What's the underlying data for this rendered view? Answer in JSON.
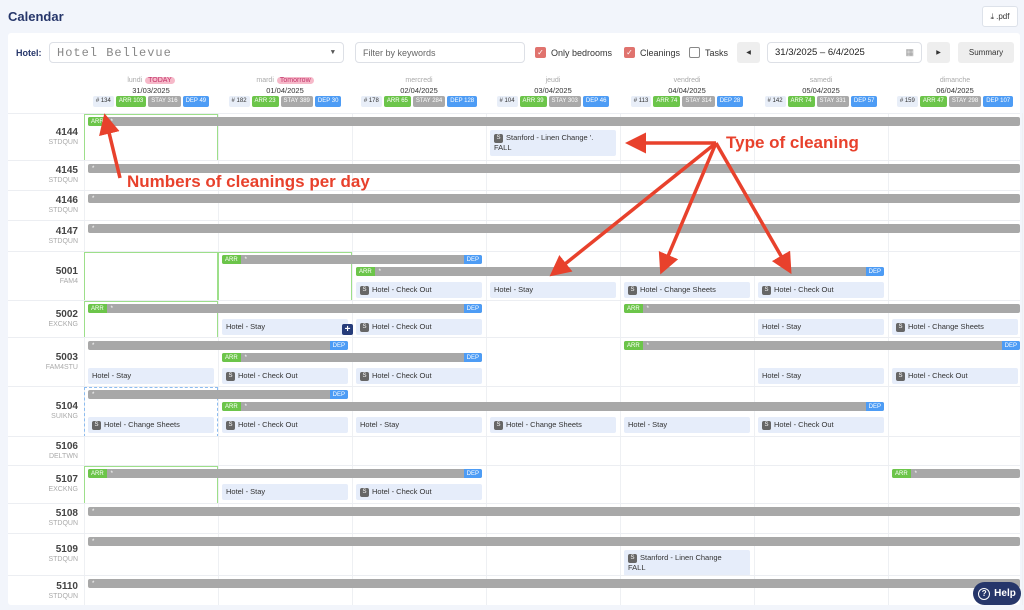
{
  "title": "Calendar",
  "pdf_label": ".pdf",
  "toolbar": {
    "hotel_label": "Hotel:",
    "hotel_value": "Hotel Bellevue",
    "filter_placeholder": "Filter by keywords",
    "only_bedrooms": {
      "label": "Only bedrooms",
      "checked": true
    },
    "cleanings": {
      "label": "Cleanings",
      "checked": true
    },
    "tasks": {
      "label": "Tasks",
      "checked": false
    },
    "date_range": "31/3/2025 – 6/4/2025",
    "summary_label": "Summary"
  },
  "days": [
    {
      "name": "lundi",
      "tag": "TODAY",
      "date": "31/03/2025",
      "count": "# 134",
      "arr": "ARR 103",
      "stay": "STAY 316",
      "dep": "DEP 49"
    },
    {
      "name": "mardi",
      "tag": "Tomorrow",
      "date": "01/04/2025",
      "count": "# 182",
      "arr": "ARR 23",
      "stay": "STAY 389",
      "dep": "DEP 30"
    },
    {
      "name": "mercredi",
      "tag": "",
      "date": "02/04/2025",
      "count": "# 178",
      "arr": "ARR 65",
      "stay": "STAY 284",
      "dep": "DEP 128"
    },
    {
      "name": "jeudi",
      "tag": "",
      "date": "03/04/2025",
      "count": "# 104",
      "arr": "ARR 39",
      "stay": "STAY 303",
      "dep": "DEP 46"
    },
    {
      "name": "vendredi",
      "tag": "",
      "date": "04/04/2025",
      "count": "# 113",
      "arr": "ARR 74",
      "stay": "STAY 314",
      "dep": "DEP 28"
    },
    {
      "name": "samedi",
      "tag": "",
      "date": "05/04/2025",
      "count": "# 142",
      "arr": "ARR 74",
      "stay": "STAY 331",
      "dep": "DEP 57"
    },
    {
      "name": "dimanche",
      "tag": "",
      "date": "06/04/2025",
      "count": "# 159",
      "arr": "ARR 47",
      "stay": "STAY 298",
      "dep": "DEP 107"
    }
  ],
  "labels": {
    "arr": "ARR",
    "dep": "DEP",
    "star": "*",
    "s": "S",
    "plus": "+"
  },
  "rooms": [
    {
      "number": "4144",
      "type": "STDQUN",
      "highlights": [
        {
          "day": 0,
          "kind": "arrival"
        }
      ],
      "bars": [
        {
          "from": 0,
          "to": 6,
          "arr": true,
          "dep": false
        }
      ],
      "cards": [
        {
          "day": 3,
          "s": true,
          "text": "Stanford - Linen Change '.",
          "sub": "FALL"
        }
      ]
    },
    {
      "number": "4145",
      "type": "STDQUN",
      "bars": [
        {
          "from": 0,
          "to": 6,
          "arr": false,
          "dep": false
        }
      ],
      "cards": []
    },
    {
      "number": "4146",
      "type": "STDQUN",
      "bars": [
        {
          "from": 0,
          "to": 6,
          "arr": false,
          "dep": false
        }
      ],
      "cards": []
    },
    {
      "number": "4147",
      "type": "STDQUN",
      "bars": [
        {
          "from": 0,
          "to": 6,
          "arr": false,
          "dep": false
        }
      ],
      "cards": []
    },
    {
      "number": "5001",
      "type": "FAM4",
      "highlights": [
        {
          "day": 0,
          "kind": "arrival"
        },
        {
          "day": 1,
          "kind": "arrival"
        }
      ],
      "bars": [
        {
          "from": 1,
          "to": 2,
          "arr": true,
          "dep": true
        },
        {
          "from": 2,
          "to": 5,
          "arr": true,
          "dep": true
        }
      ],
      "cards": [
        {
          "day": 2,
          "s": true,
          "text": "Hotel - Check Out"
        },
        {
          "day": 3,
          "s": false,
          "text": "Hotel - Stay"
        },
        {
          "day": 4,
          "s": true,
          "text": "Hotel - Change Sheets"
        },
        {
          "day": 5,
          "s": true,
          "text": "Hotel - Check Out"
        }
      ]
    },
    {
      "number": "5002",
      "type": "EXCKNG",
      "highlights": [
        {
          "day": 0,
          "kind": "arrival"
        }
      ],
      "bars": [
        {
          "from": 0,
          "to": 2,
          "arr": true,
          "dep": true
        },
        {
          "from": 4,
          "to": 6,
          "arr": true,
          "dep": false
        }
      ],
      "cards": [
        {
          "day": 1,
          "s": false,
          "text": "Hotel - Stay",
          "plus": true
        },
        {
          "day": 2,
          "s": true,
          "text": "Hotel - Check Out"
        },
        {
          "day": 5,
          "s": false,
          "text": "Hotel - Stay"
        },
        {
          "day": 6,
          "s": true,
          "text": "Hotel - Change Sheets"
        }
      ]
    },
    {
      "number": "5003",
      "type": "FAM4STU",
      "bars": [
        {
          "from": 0,
          "to": 1,
          "arr": false,
          "dep": true
        },
        {
          "from": 4,
          "to": 6,
          "arr": true,
          "dep": true
        },
        {
          "from": 1,
          "to": 2,
          "arr": true,
          "dep": true
        }
      ],
      "cards": [
        {
          "day": 0,
          "s": false,
          "text": "Hotel - Stay"
        },
        {
          "day": 1,
          "s": true,
          "text": "Hotel - Check Out"
        },
        {
          "day": 2,
          "s": true,
          "text": "Hotel - Check Out"
        },
        {
          "day": 5,
          "s": false,
          "text": "Hotel - Stay"
        },
        {
          "day": 6,
          "s": true,
          "text": "Hotel - Check Out"
        }
      ]
    },
    {
      "number": "5104",
      "type": "SUIKNG",
      "highlights": [
        {
          "day": 0,
          "kind": "selected"
        }
      ],
      "bars": [
        {
          "from": 0,
          "to": 1,
          "arr": false,
          "dep": true
        },
        {
          "from": 1,
          "to": 5,
          "arr": true,
          "dep": true
        }
      ],
      "cards": [
        {
          "day": 0,
          "s": true,
          "text": "Hotel - Change Sheets"
        },
        {
          "day": 1,
          "s": true,
          "text": "Hotel - Check Out"
        },
        {
          "day": 2,
          "s": false,
          "text": "Hotel - Stay"
        },
        {
          "day": 3,
          "s": true,
          "text": "Hotel - Change Sheets"
        },
        {
          "day": 4,
          "s": false,
          "text": "Hotel - Stay"
        },
        {
          "day": 5,
          "s": true,
          "text": "Hotel - Check Out"
        }
      ]
    },
    {
      "number": "5106",
      "type": "DELTWN",
      "bars": [],
      "cards": []
    },
    {
      "number": "5107",
      "type": "EXCKNG",
      "highlights": [
        {
          "day": 0,
          "kind": "arrival"
        }
      ],
      "bars": [
        {
          "from": 0,
          "to": 2,
          "arr": true,
          "dep": true
        },
        {
          "from": 6,
          "to": 6,
          "arr": true,
          "dep": false
        }
      ],
      "cards": [
        {
          "day": 1,
          "s": false,
          "text": "Hotel - Stay"
        },
        {
          "day": 2,
          "s": true,
          "text": "Hotel - Check Out"
        }
      ]
    },
    {
      "number": "5108",
      "type": "STDQUN",
      "bars": [
        {
          "from": 0,
          "to": 6,
          "arr": false,
          "dep": false
        }
      ],
      "cards": []
    },
    {
      "number": "5109",
      "type": "STDQUN",
      "bars": [
        {
          "from": 0,
          "to": 6,
          "arr": false,
          "dep": false
        }
      ],
      "cards": [
        {
          "day": 4,
          "s": true,
          "text": "Stanford - Linen Change",
          "sub": "FALL"
        }
      ]
    },
    {
      "number": "5110",
      "type": "STDQUN",
      "bars": [
        {
          "from": 0,
          "to": 6,
          "arr": false,
          "dep": false
        }
      ],
      "cards": []
    }
  ],
  "annotations": {
    "cleanings_per_day": "Numbers of cleanings per day",
    "type_of_cleaning": "Type of cleaning",
    "color": "#e8412c"
  },
  "help_label": "Help",
  "colors": {
    "arr": "#6cc54a",
    "stay": "#a9a9a9",
    "dep": "#4d9cf5",
    "title": "#26366a",
    "checkbox": "#e0736e"
  }
}
